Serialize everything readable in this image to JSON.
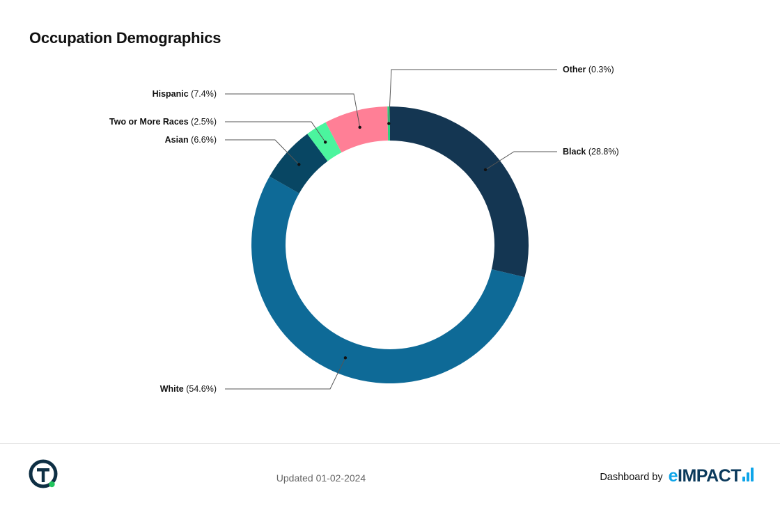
{
  "page": {
    "title": "Occupation Demographics",
    "updated": "Updated 01-02-2024",
    "credit_label": "Dashboard by",
    "brand": {
      "e": "e",
      "rest": "IMPACT",
      "bars_icon": "bar-chart-icon"
    },
    "logo_icon": "t-circle-logo-icon"
  },
  "chart_data": {
    "type": "pie",
    "style": "donut",
    "title": "Occupation Demographics",
    "slices": [
      {
        "name": "Black",
        "value": 28.8,
        "label": "(28.8%)",
        "color": "#143652"
      },
      {
        "name": "White",
        "value": 54.6,
        "label": "(54.6%)",
        "color": "#0e6a97"
      },
      {
        "name": "Asian",
        "value": 6.6,
        "label": "(6.6%)",
        "color": "#084663"
      },
      {
        "name": "Two or More Races",
        "value": 2.5,
        "label": "(2.5%)",
        "color": "#4bf59e"
      },
      {
        "name": "Hispanic",
        "value": 7.4,
        "label": "(7.4%)",
        "color": "#ff7f96"
      },
      {
        "name": "Other",
        "value": 0.3,
        "label": "(0.3%)",
        "color": "#2fd27f"
      }
    ],
    "start": "top",
    "direction": "clockwise",
    "legend": "none",
    "labels": "outside with leader lines"
  }
}
